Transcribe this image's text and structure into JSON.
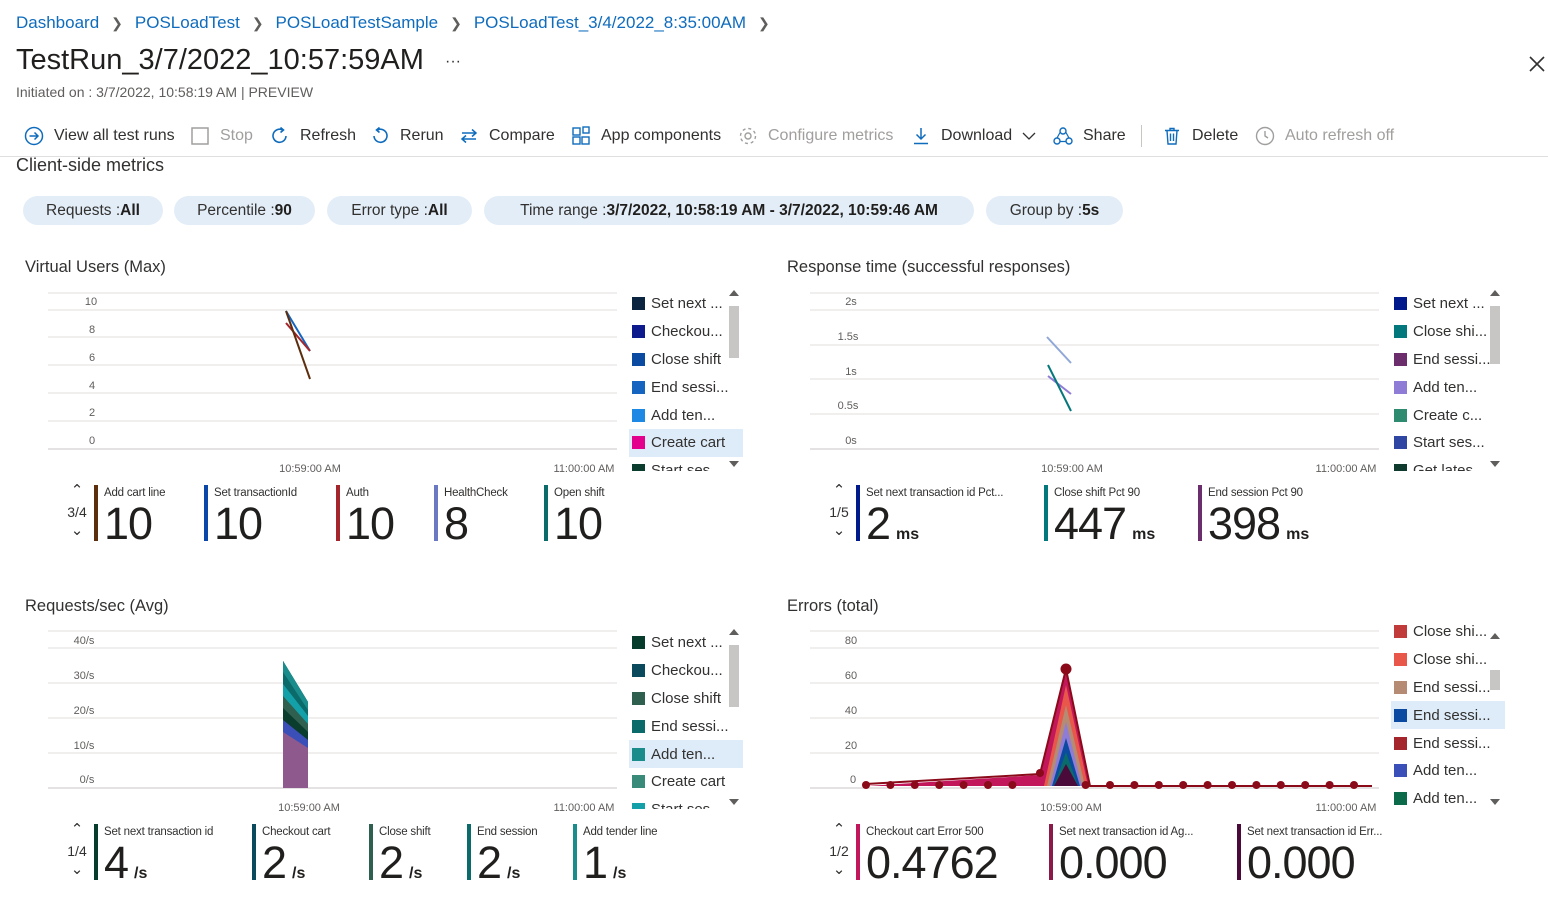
{
  "breadcrumb": {
    "items": [
      "Dashboard",
      "POSLoadTest",
      "POSLoadTestSample",
      "POSLoadTest_3/4/2022_8:35:00AM"
    ]
  },
  "header": {
    "title": "TestRun_3/7/2022_10:57:59AM",
    "more": "···",
    "subtitle": "Initiated on : 3/7/2022, 10:58:19 AM | PREVIEW"
  },
  "toolbar": {
    "view_all": "View all test runs",
    "stop": "Stop",
    "refresh": "Refresh",
    "rerun": "Rerun",
    "compare": "Compare",
    "app_components": "App components",
    "configure_metrics": "Configure metrics",
    "download": "Download",
    "share": "Share",
    "delete": "Delete",
    "auto_refresh": "Auto refresh off"
  },
  "section_title": "Client-side metrics",
  "filters": [
    {
      "label": "Requests : ",
      "value": "All"
    },
    {
      "label": "Percentile : ",
      "value": "90"
    },
    {
      "label": "Error type : ",
      "value": "All"
    },
    {
      "label": "Time range : ",
      "value": "3/7/2022, 10:58:19 AM - 3/7/2022, 10:59:46 AM"
    },
    {
      "label": "Group by : ",
      "value": "5s"
    }
  ],
  "colors": {
    "accent": "#0f6cbd",
    "pill_bg": "#e3edf7"
  },
  "panels": {
    "vu": {
      "title": "Virtual Users (Max)",
      "yticks": [
        "10",
        "8",
        "6",
        "4",
        "2",
        "0"
      ],
      "xticks": [
        "10:59:00 AM",
        "11:00:00 AM"
      ],
      "legend": [
        {
          "label": "Set next ...",
          "color": "#0b2540"
        },
        {
          "label": "Checkou...",
          "color": "#0d1b8c"
        },
        {
          "label": "Close shift",
          "color": "#0a4aa0"
        },
        {
          "label": "End sessi...",
          "color": "#1565c0"
        },
        {
          "label": "Add ten...",
          "color": "#1e88e5"
        },
        {
          "label": "Create cart",
          "color": "#e3008c"
        },
        {
          "label": "Start ses...",
          "color": "#0b3d2e"
        }
      ],
      "highlight": 5,
      "pager": "3/4",
      "cards": [
        {
          "label": "Add cart line",
          "value": "10",
          "unit": "",
          "color": "#5c2e0e"
        },
        {
          "label": "Set transactionId",
          "value": "10",
          "unit": "",
          "color": "#0a47a8"
        },
        {
          "label": "Auth",
          "value": "10",
          "unit": "",
          "color": "#a4262c"
        },
        {
          "label": "HealthCheck",
          "value": "8",
          "unit": "",
          "color": "#6b78c2"
        },
        {
          "label": "Open shift",
          "value": "10",
          "unit": "",
          "color": "#0b6a6a"
        }
      ]
    },
    "rt": {
      "title": "Response time (successful responses)",
      "yticks": [
        "2s",
        "1.5s",
        "1s",
        "0.5s",
        "0s"
      ],
      "xticks": [
        "10:59:00 AM",
        "11:00:00 AM"
      ],
      "legend": [
        {
          "label": "Set next ...",
          "color": "#001a8c"
        },
        {
          "label": "Close shi...",
          "color": "#03787c"
        },
        {
          "label": "End sessi...",
          "color": "#6b2d6b"
        },
        {
          "label": "Add ten...",
          "color": "#8e7cd6"
        },
        {
          "label": "Create c...",
          "color": "#2e8b6f"
        },
        {
          "label": "Start ses...",
          "color": "#2f46a3"
        },
        {
          "label": "Get lates...",
          "color": "#0e3b2e"
        }
      ],
      "highlight": -1,
      "pager": "1/5",
      "cards": [
        {
          "label": "Set next transaction id Pct...",
          "value": "2",
          "unit": "ms",
          "color": "#001a8c"
        },
        {
          "label": "Close shift Pct 90",
          "value": "447",
          "unit": "ms",
          "color": "#03787c"
        },
        {
          "label": "End session Pct 90",
          "value": "398",
          "unit": "ms",
          "color": "#6b2d6b"
        }
      ]
    },
    "rps": {
      "title": "Requests/sec (Avg)",
      "yticks": [
        "40/s",
        "30/s",
        "20/s",
        "10/s",
        "0/s"
      ],
      "xticks": [
        "10:59:00 AM",
        "11:00:00 AM"
      ],
      "legend": [
        {
          "label": "Set next ...",
          "color": "#073b2b"
        },
        {
          "label": "Checkou...",
          "color": "#0a4a5c"
        },
        {
          "label": "Close shift",
          "color": "#2f5f4f"
        },
        {
          "label": "End sessi...",
          "color": "#0b6a6a"
        },
        {
          "label": "Add ten...",
          "color": "#1a8c8c"
        },
        {
          "label": "Create cart",
          "color": "#3a8a7a"
        },
        {
          "label": "Start ses...",
          "color": "#14a0a8"
        }
      ],
      "highlight": 4,
      "pager": "1/4",
      "cards": [
        {
          "label": "Set next transaction id",
          "value": "4",
          "unit": "/s",
          "color": "#073b2b"
        },
        {
          "label": "Checkout cart",
          "value": "2",
          "unit": "/s",
          "color": "#0a4a5c"
        },
        {
          "label": "Close shift",
          "value": "2",
          "unit": "/s",
          "color": "#2f5f4f"
        },
        {
          "label": "End session",
          "value": "2",
          "unit": "/s",
          "color": "#0b6a6a"
        },
        {
          "label": "Add tender line",
          "value": "1",
          "unit": "/s",
          "color": "#1a8c8c"
        }
      ]
    },
    "err": {
      "title": "Errors (total)",
      "yticks": [
        "80",
        "60",
        "40",
        "20",
        "0"
      ],
      "xticks": [
        "10:59:00 AM",
        "11:00:00 AM"
      ],
      "legend": [
        {
          "label": "Close shi...",
          "color": "#c23b3b"
        },
        {
          "label": "Close shi...",
          "color": "#e8574a"
        },
        {
          "label": "End sessi...",
          "color": "#b58b73"
        },
        {
          "label": "End sessi...",
          "color": "#0a4aa0"
        },
        {
          "label": "End sessi...",
          "color": "#a4262c"
        },
        {
          "label": "Add ten...",
          "color": "#3b4fb8"
        },
        {
          "label": "Add ten...",
          "color": "#0b6a4a"
        }
      ],
      "highlight": 3,
      "pager": "1/2",
      "cards": [
        {
          "label": "Checkout cart Error 500",
          "value": "0.4762",
          "unit": "",
          "color": "#c2185b"
        },
        {
          "label": "Set next transaction id Ag...",
          "value": "0.000",
          "unit": "",
          "color": "#8b1a4a"
        },
        {
          "label": "Set next transaction id Err...",
          "value": "0.000",
          "unit": "",
          "color": "#4a0a3a"
        }
      ]
    }
  }
}
